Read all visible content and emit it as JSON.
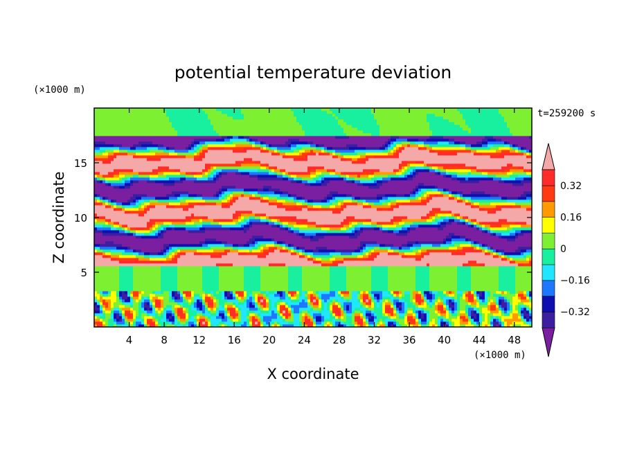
{
  "chart_data": {
    "type": "heatmap",
    "title": "potential temperature deviation",
    "xlabel": "X coordinate",
    "ylabel": "Z coordinate",
    "x_unit": "(×1000 m)",
    "y_unit": "(×1000 m)",
    "time_label": "t=259200 s",
    "xlim": [
      0,
      50
    ],
    "ylim": [
      0,
      20
    ],
    "x_ticks": [
      4,
      8,
      12,
      16,
      20,
      24,
      28,
      32,
      36,
      40,
      44,
      48
    ],
    "y_ticks": [
      5,
      10,
      15
    ],
    "colorbar": {
      "levels": [
        -0.4,
        -0.32,
        -0.24,
        -0.16,
        -0.08,
        0,
        0.08,
        0.16,
        0.24,
        0.32,
        0.4
      ],
      "labels": [
        "0.32",
        "0.16",
        "0",
        "−0.16",
        "−0.32"
      ],
      "label_values": [
        0.32,
        0.16,
        0,
        -0.16,
        -0.32
      ],
      "colors": [
        "#7a1fa0",
        "#3c1ea0",
        "#0f0faf",
        "#1e78ff",
        "#20e6ff",
        "#18f0a0",
        "#7ef032",
        "#ffff00",
        "#ff9a00",
        "#ff3a10",
        "#ff2a2a",
        "#f4a8a8"
      ]
    },
    "description_free_field_layers": [
      {
        "z_range": [
          17.5,
          20
        ],
        "level": "near 0"
      },
      {
        "z_range": [
          5.5,
          17.5
        ],
        "level": "alternating ±0.4 bands"
      },
      {
        "z_range": [
          3.3,
          5.5
        ],
        "level": "near 0"
      },
      {
        "z_range": [
          0,
          3.3
        ],
        "level": "mixed turbulent"
      }
    ]
  }
}
